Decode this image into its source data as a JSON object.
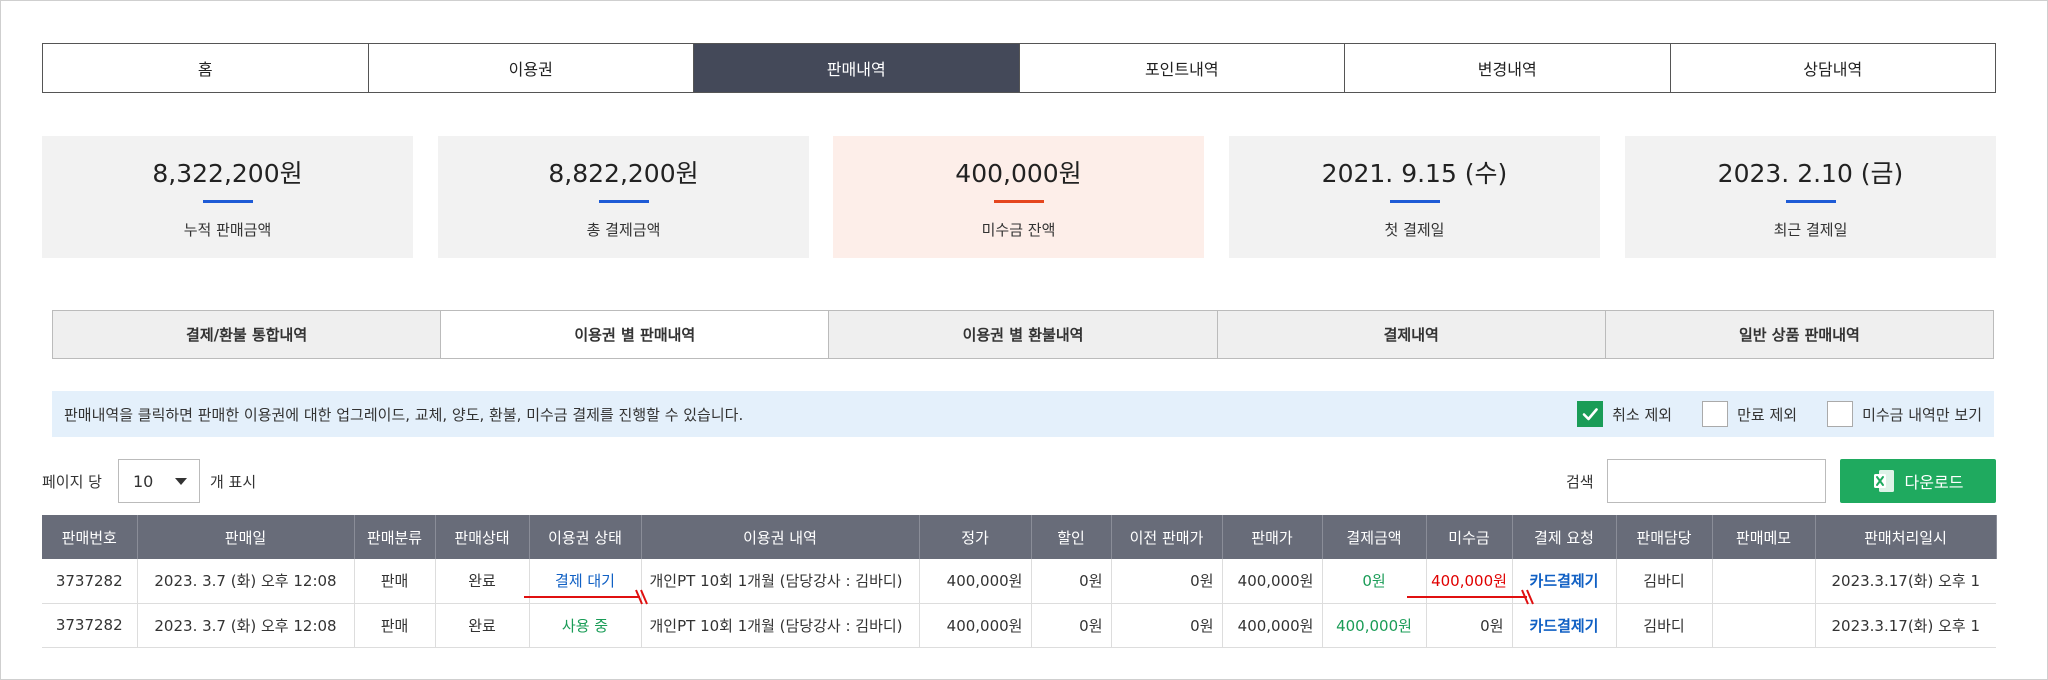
{
  "nav": {
    "tabs": [
      {
        "label": "홈"
      },
      {
        "label": "이용권"
      },
      {
        "label": "판매내역"
      },
      {
        "label": "포인트내역"
      },
      {
        "label": "변경내역"
      },
      {
        "label": "상담내역"
      }
    ],
    "active_index": 2
  },
  "stats": [
    {
      "value": "8,322,200원",
      "label": "누적 판매금액"
    },
    {
      "value": "8,822,200원",
      "label": "총 결제금액"
    },
    {
      "value": "400,000원",
      "label": "미수금 잔액"
    },
    {
      "value": "2021. 9.15 (수)",
      "label": "첫 결제일"
    },
    {
      "value": "2023. 2.10 (금)",
      "label": "최근 결제일"
    }
  ],
  "subtabs": {
    "tabs": [
      {
        "label": "결제/환불 통합내역"
      },
      {
        "label": "이용권 별 판매내역"
      },
      {
        "label": "이용권 별 환불내역"
      },
      {
        "label": "결제내역"
      },
      {
        "label": "일반 상품 판매내역"
      }
    ],
    "active_index": 1
  },
  "info": {
    "text": "판매내역을 클릭하면 판매한 이용권에 대한 업그레이드, 교체, 양도, 환불, 미수금 결제를 진행할 수 있습니다.",
    "filters": [
      {
        "label": "취소 제외",
        "checked": true
      },
      {
        "label": "만료 제외",
        "checked": false
      },
      {
        "label": "미수금 내역만 보기",
        "checked": false
      }
    ]
  },
  "controls": {
    "per_page_label": "페이지 당",
    "per_page_value": "10",
    "per_page_suffix": "개 표시",
    "search_label": "검색",
    "search_value": "",
    "download_label": "다운로드"
  },
  "table": {
    "headers": [
      "판매번호",
      "판매일",
      "판매분류",
      "판매상태",
      "이용권 상태",
      "이용권 내역",
      "정가",
      "할인",
      "이전 판매가",
      "판매가",
      "결제금액",
      "미수금",
      "결제 요청",
      "판매담당",
      "판매메모",
      "판매처리일시"
    ],
    "rows": [
      [
        "3737282",
        "2023. 3.7 (화) 오후 12:08",
        "판매",
        "완료",
        "결제 대기",
        "개인PT 10회 1개월 (담당강사 : 김바디)",
        "400,000원",
        "0원",
        "0원",
        "400,000원",
        "0원",
        "400,000원",
        "카드결제기",
        "김바디",
        "",
        "2023.3.17(화) 오후 1"
      ],
      [
        "3737282",
        "2023. 3.7 (화) 오후 12:08",
        "판매",
        "완료",
        "사용 중",
        "개인PT 10회 1개월 (담당강사 : 김바디)",
        "400,000원",
        "0원",
        "0원",
        "400,000원",
        "400,000원",
        "0원",
        "카드결제기",
        "김바디",
        "",
        "2023.3.17(화) 오후 1"
      ]
    ]
  },
  "colors": {
    "nav_active": "#444959",
    "accent_blue": "#1e5bd6",
    "accent_red": "#e5461e",
    "download_green": "#1faa5f",
    "status_pending": "#1060c4",
    "status_active": "#1a9c57",
    "unpaid_red": "#e00000"
  }
}
